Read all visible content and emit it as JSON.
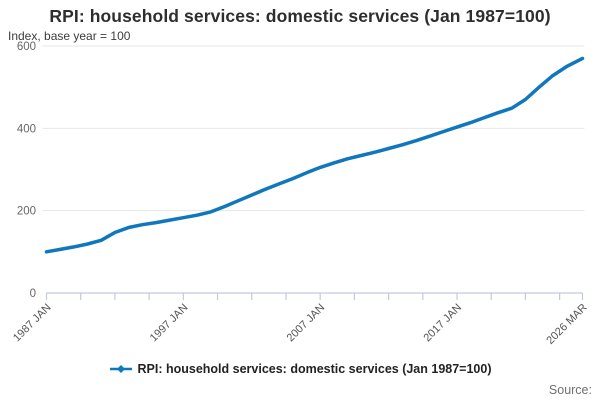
{
  "page": {
    "title": "RPI: household services: domestic services (Jan 1987=100)",
    "subtitle": "Index, base year = 100",
    "legend_label": "RPI: household services: domestic services (Jan 1987=100)",
    "source_label": "Source:"
  },
  "chart_data": {
    "type": "line",
    "title": "RPI: household services: domestic services (Jan 1987=100)",
    "subtitle": "Index, base year = 100",
    "xlabel": "",
    "ylabel": "Index, base year = 100",
    "x_range": [
      1987.0,
      2026.17
    ],
    "ylim": [
      0,
      600
    ],
    "y_ticks": [
      0,
      200,
      400,
      600
    ],
    "x_tick_labels": [
      {
        "x": 1987.0,
        "label": "1987 JAN"
      },
      {
        "x": 1997.0,
        "label": "1997 JAN"
      },
      {
        "x": 2007.0,
        "label": "2007 JAN"
      },
      {
        "x": 2017.0,
        "label": "2017 JAN"
      },
      {
        "x": 2026.17,
        "label": "2026 MAR"
      }
    ],
    "x_minor_tick_step_years": 2.5,
    "grid": "horizontal-only",
    "legend_position": "bottom-center",
    "series": [
      {
        "name": "RPI: household services: domestic services (Jan 1987=100)",
        "color": "#1077bc",
        "marker": "diamond",
        "points": [
          [
            1987.0,
            100
          ],
          [
            1988.0,
            106
          ],
          [
            1989.0,
            112
          ],
          [
            1990.0,
            119
          ],
          [
            1991.0,
            128
          ],
          [
            1992.0,
            147
          ],
          [
            1993.0,
            159
          ],
          [
            1994.0,
            166
          ],
          [
            1995.0,
            171
          ],
          [
            1996.0,
            177
          ],
          [
            1997.0,
            183
          ],
          [
            1998.0,
            189
          ],
          [
            1999.0,
            197
          ],
          [
            2000.0,
            210
          ],
          [
            2001.0,
            224
          ],
          [
            2002.0,
            238
          ],
          [
            2003.0,
            252
          ],
          [
            2004.0,
            265
          ],
          [
            2005.0,
            278
          ],
          [
            2006.0,
            292
          ],
          [
            2007.0,
            305
          ],
          [
            2008.0,
            316
          ],
          [
            2009.0,
            326
          ],
          [
            2010.0,
            334
          ],
          [
            2011.0,
            342
          ],
          [
            2012.0,
            351
          ],
          [
            2013.0,
            360
          ],
          [
            2014.0,
            370
          ],
          [
            2015.0,
            381
          ],
          [
            2016.0,
            392
          ],
          [
            2017.0,
            403
          ],
          [
            2018.0,
            414
          ],
          [
            2019.0,
            426
          ],
          [
            2020.0,
            438
          ],
          [
            2021.0,
            449
          ],
          [
            2022.0,
            470
          ],
          [
            2023.0,
            500
          ],
          [
            2024.0,
            528
          ],
          [
            2025.0,
            550
          ],
          [
            2026.17,
            570
          ]
        ]
      }
    ],
    "colors": {
      "line": "#1077bc",
      "gridline": "#e6e6e6",
      "axis": "#c2cadd",
      "title_text": "#2e2e2e",
      "tick_text": "#666666",
      "source_text": "#6f6f6f"
    }
  }
}
